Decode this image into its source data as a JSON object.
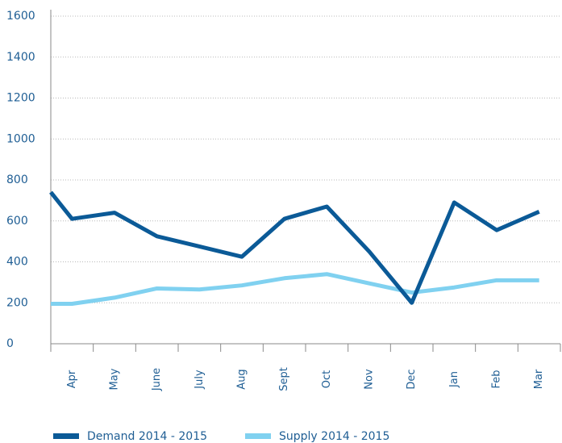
{
  "chart_data": {
    "type": "line",
    "categories": [
      null,
      "Apr",
      "May",
      "June",
      "July",
      "Aug",
      "Sept",
      "Oct",
      "Nov",
      "Dec",
      "Jan",
      "Feb",
      "Mar"
    ],
    "series": [
      {
        "name": "Demand 2014 - 2015",
        "color": "#0b5a97",
        "values": [
          740,
          610,
          640,
          525,
          475,
          425,
          610,
          670,
          450,
          200,
          690,
          555,
          645
        ]
      },
      {
        "name": "Supply 2014 - 2015",
        "color": "#80d1f0",
        "values": [
          195,
          195,
          225,
          270,
          265,
          285,
          320,
          340,
          295,
          250,
          275,
          310,
          310
        ]
      }
    ],
    "ylim": [
      0,
      1600
    ],
    "yticks": [
      0,
      200,
      400,
      600,
      800,
      1000,
      1200,
      1400,
      1600
    ],
    "grid": true
  }
}
